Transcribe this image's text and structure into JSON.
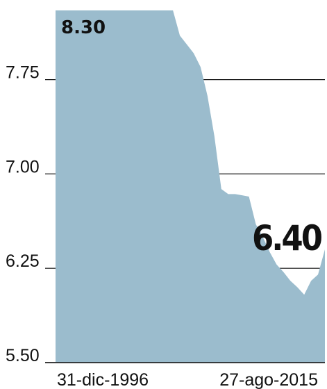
{
  "chart_data": {
    "type": "area",
    "categories": [
      "31-dic-1996",
      null,
      null,
      null,
      null,
      null,
      null,
      null,
      null,
      null,
      null,
      null,
      null,
      null,
      null,
      null,
      null,
      null,
      null,
      null,
      null,
      null,
      null,
      null,
      null,
      null,
      null,
      null,
      null,
      null,
      null,
      null,
      null,
      null,
      null,
      null,
      null,
      null,
      null,
      "27-ago-2015"
    ],
    "series": [
      {
        "color": "#9bbccd",
        "values": [
          8.3,
          8.3,
          8.3,
          8.3,
          8.3,
          8.3,
          8.3,
          8.3,
          8.3,
          8.3,
          8.3,
          8.3,
          8.3,
          8.3,
          8.3,
          8.3,
          8.3,
          8.3,
          8.1,
          8.03,
          7.96,
          7.85,
          7.62,
          7.3,
          6.88,
          6.84,
          6.84,
          6.83,
          6.82,
          6.6,
          6.5,
          6.38,
          6.28,
          6.22,
          6.15,
          6.1,
          6.04,
          6.15,
          6.2,
          6.4
        ]
      }
    ],
    "ylim": [
      5.5,
      8.3
    ],
    "yticks": [
      {
        "value": 5.5,
        "label": "5.50"
      },
      6.25,
      {
        "value": 7,
        "label": "7.00"
      },
      7.75
    ],
    "grid": true,
    "annotations": [
      "8.30",
      "6.40"
    ]
  }
}
